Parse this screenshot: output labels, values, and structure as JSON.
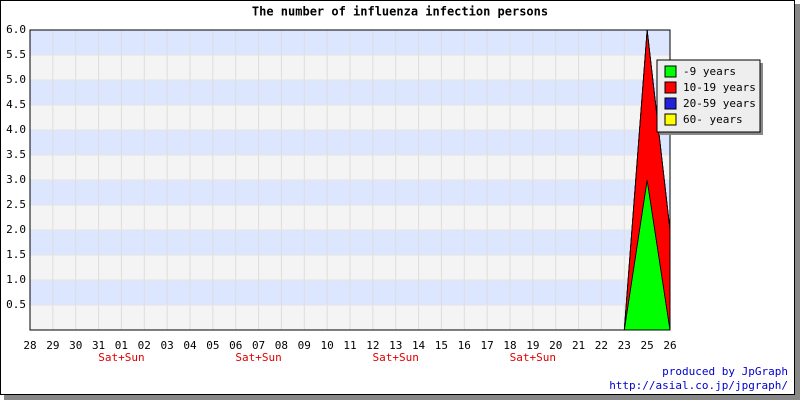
{
  "chart_data": {
    "type": "stacked_area",
    "title": "The number of influenza infection persons",
    "categories": [
      "28",
      "29",
      "30",
      "31",
      "01",
      "02",
      "03",
      "04",
      "05",
      "06",
      "07",
      "08",
      "09",
      "10",
      "11",
      "12",
      "13",
      "14",
      "15",
      "16",
      "17",
      "18",
      "19",
      "20",
      "21",
      "22",
      "23",
      "25",
      "26"
    ],
    "x_sublabels": [
      null,
      null,
      null,
      null,
      "Sat+Sun",
      null,
      null,
      null,
      null,
      null,
      "Sat+Sun",
      null,
      null,
      null,
      null,
      null,
      "Sat+Sun",
      null,
      null,
      null,
      null,
      null,
      "Sat+Sun",
      null,
      null,
      null,
      null,
      null,
      null
    ],
    "series": [
      {
        "name": "-9 years",
        "color": "#00ff00",
        "values": [
          0,
          0,
          0,
          0,
          0,
          0,
          0,
          0,
          0,
          0,
          0,
          0,
          0,
          0,
          0,
          0,
          0,
          0,
          0,
          0,
          0,
          0,
          0,
          0,
          0,
          0,
          0,
          3,
          0
        ]
      },
      {
        "name": "10-19 years",
        "color": "#ff0000",
        "values": [
          0,
          0,
          0,
          0,
          0,
          0,
          0,
          0,
          0,
          0,
          0,
          0,
          0,
          0,
          0,
          0,
          0,
          0,
          0,
          0,
          0,
          0,
          0,
          0,
          0,
          0,
          0,
          3,
          2
        ]
      },
      {
        "name": "20-59 years",
        "color": "#2222dd",
        "values": [
          0,
          0,
          0,
          0,
          0,
          0,
          0,
          0,
          0,
          0,
          0,
          0,
          0,
          0,
          0,
          0,
          0,
          0,
          0,
          0,
          0,
          0,
          0,
          0,
          0,
          0,
          0,
          0,
          0
        ]
      },
      {
        "name": "60- years",
        "color": "#ffff00",
        "values": [
          0,
          0,
          0,
          0,
          0,
          0,
          0,
          0,
          0,
          0,
          0,
          0,
          0,
          0,
          0,
          0,
          0,
          0,
          0,
          0,
          0,
          0,
          0,
          0,
          0,
          0,
          0,
          0,
          0
        ]
      }
    ],
    "ylim": [
      0,
      6
    ],
    "yticks": [
      0.5,
      {
        "value": 1,
        "label": "1.0"
      },
      1.5,
      {
        "value": 2,
        "label": "2.0"
      },
      2.5,
      {
        "value": 3,
        "label": "3.0"
      },
      3.5,
      {
        "value": 4,
        "label": "4.0"
      },
      4.5,
      {
        "value": 5,
        "label": "5.0"
      },
      5.5,
      {
        "value": 6,
        "label": "6.0"
      }
    ],
    "grid": true,
    "legend": "right",
    "footer": [
      "produced by JpGraph",
      "http://asial.co.jp/jpgraph/"
    ]
  }
}
